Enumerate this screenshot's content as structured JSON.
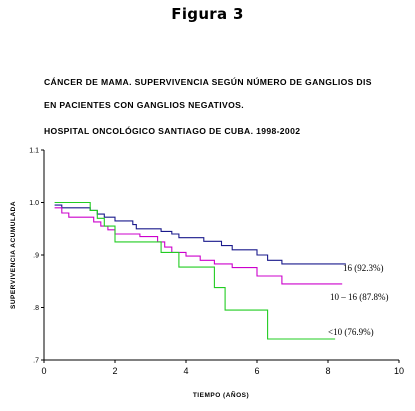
{
  "figure_title": "Figura 3",
  "caption_lines": [
    "CÁNCER DE MAMA. SUPERVIVENCIA SEGÚN NÚMERO DE GANGLIOS DIS",
    "EN PACIENTES CON GANGLIOS NEGATIVOS.",
    "HOSPITAL ONCOLÓGICO SANTIAGO DE CUBA. 1998-2002"
  ],
  "chart_data": {
    "type": "line",
    "title": "",
    "xlabel": "TIEMPO (AÑOS)",
    "ylabel": "SUPERVIVENCIA ACUMULADA",
    "xlim": [
      0,
      10
    ],
    "ylim": [
      0.7,
      1.1
    ],
    "xticks": [
      "0",
      "2",
      "4",
      "6",
      "8",
      "10"
    ],
    "yticks": [
      ".7",
      ".8",
      ".9",
      "1.0",
      "1.1"
    ],
    "grid": false,
    "step": true,
    "series": [
      {
        "name": "16 (92.3%)",
        "color": "#1a1a8c",
        "points": [
          [
            0.3,
            0.995
          ],
          [
            0.5,
            0.99
          ],
          [
            1.3,
            0.985
          ],
          [
            1.5,
            0.978
          ],
          [
            1.7,
            0.972
          ],
          [
            2.0,
            0.965
          ],
          [
            2.5,
            0.958
          ],
          [
            2.6,
            0.95
          ],
          [
            3.3,
            0.945
          ],
          [
            3.6,
            0.94
          ],
          [
            3.8,
            0.933
          ],
          [
            4.5,
            0.926
          ],
          [
            5.0,
            0.918
          ],
          [
            5.3,
            0.91
          ],
          [
            6.0,
            0.9
          ],
          [
            6.3,
            0.89
          ],
          [
            6.7,
            0.883
          ],
          [
            8.5,
            0.883
          ]
        ]
      },
      {
        "name": "10 – 16 (87.8%)",
        "color": "#cc00cc",
        "points": [
          [
            0.3,
            0.99
          ],
          [
            0.5,
            0.98
          ],
          [
            0.7,
            0.972
          ],
          [
            1.4,
            0.963
          ],
          [
            1.6,
            0.955
          ],
          [
            1.8,
            0.948
          ],
          [
            2.0,
            0.94
          ],
          [
            2.7,
            0.935
          ],
          [
            3.2,
            0.925
          ],
          [
            3.4,
            0.915
          ],
          [
            3.6,
            0.905
          ],
          [
            4.0,
            0.898
          ],
          [
            4.4,
            0.89
          ],
          [
            4.8,
            0.883
          ],
          [
            5.3,
            0.876
          ],
          [
            6.0,
            0.86
          ],
          [
            6.7,
            0.845
          ],
          [
            8.4,
            0.845
          ]
        ]
      },
      {
        "name": "<10 (76.9%)",
        "color": "#22cc22",
        "points": [
          [
            0.3,
            1.0
          ],
          [
            1.3,
            0.985
          ],
          [
            1.5,
            0.97
          ],
          [
            1.7,
            0.955
          ],
          [
            2.0,
            0.925
          ],
          [
            3.3,
            0.905
          ],
          [
            3.8,
            0.877
          ],
          [
            4.8,
            0.838
          ],
          [
            5.1,
            0.795
          ],
          [
            6.3,
            0.74
          ],
          [
            8.2,
            0.74
          ]
        ]
      }
    ]
  }
}
